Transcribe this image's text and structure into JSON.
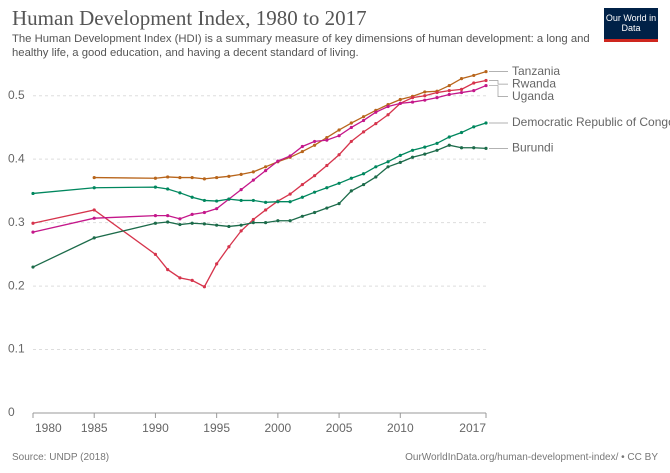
{
  "chart_data": {
    "type": "line",
    "title": "Human Development Index, 1980 to 2017",
    "subtitle": "The Human Development Index (HDI) is a summary measure of key dimensions of human development: a long and healthy life, a good education, and having a decent standard of living.",
    "logo": "Our World in Data",
    "source": "Source: UNDP (2018)",
    "footer_right": "OurWorldInData.org/human-development-index/ • CC BY",
    "x": [
      1980,
      1985,
      1990,
      1991,
      1992,
      1993,
      1994,
      1995,
      1996,
      1997,
      1998,
      1999,
      2000,
      2001,
      2002,
      2003,
      2004,
      2005,
      2006,
      2007,
      2008,
      2009,
      2010,
      2011,
      2012,
      2013,
      2014,
      2015,
      2016,
      2017
    ],
    "xlim": [
      1980,
      2017
    ],
    "xticks": [
      1980,
      1985,
      1990,
      1995,
      2000,
      2005,
      2010,
      2017
    ],
    "ylim": [
      0,
      0.55
    ],
    "yticks": [
      0,
      0.1,
      0.2,
      0.3,
      0.4,
      0.5
    ],
    "grid": true,
    "series": [
      {
        "name": "Tanzania",
        "color": "#b8651b",
        "values": [
          null,
          0.371,
          0.37,
          0.372,
          0.371,
          0.371,
          0.369,
          0.371,
          0.373,
          0.376,
          0.38,
          0.388,
          0.396,
          0.403,
          0.412,
          0.422,
          0.434,
          0.446,
          0.457,
          0.467,
          0.477,
          0.486,
          0.494,
          0.499,
          0.506,
          0.507,
          0.516,
          0.527,
          0.532,
          0.538
        ]
      },
      {
        "name": "Rwanda",
        "color": "#d6344c",
        "values": [
          0.299,
          0.32,
          0.25,
          0.226,
          0.213,
          0.209,
          0.199,
          0.235,
          0.262,
          0.287,
          0.305,
          0.32,
          0.334,
          0.345,
          0.36,
          0.374,
          0.39,
          0.407,
          0.428,
          0.443,
          0.456,
          0.47,
          0.488,
          0.497,
          0.5,
          0.505,
          0.508,
          0.51,
          0.52,
          0.524
        ]
      },
      {
        "name": "Uganda",
        "color": "#c4178a",
        "values": [
          0.285,
          0.307,
          0.311,
          0.311,
          0.306,
          0.313,
          0.316,
          0.322,
          0.337,
          0.352,
          0.367,
          0.382,
          0.397,
          0.405,
          0.42,
          0.428,
          0.43,
          0.437,
          0.45,
          0.461,
          0.474,
          0.483,
          0.488,
          0.49,
          0.493,
          0.497,
          0.502,
          0.505,
          0.508,
          0.516
        ]
      },
      {
        "name": "Democratic Republic of Congo",
        "color": "#00875e",
        "values": [
          0.346,
          0.355,
          0.356,
          0.353,
          0.347,
          0.34,
          0.335,
          0.334,
          0.337,
          0.335,
          0.335,
          0.332,
          0.333,
          0.333,
          0.34,
          0.348,
          0.355,
          0.362,
          0.37,
          0.377,
          0.388,
          0.396,
          0.406,
          0.414,
          0.419,
          0.425,
          0.435,
          0.442,
          0.451,
          0.457
        ]
      },
      {
        "name": "Burundi",
        "color": "#1c6b4a",
        "values": [
          0.23,
          0.276,
          0.299,
          0.301,
          0.297,
          0.299,
          0.298,
          0.296,
          0.294,
          0.296,
          0.3,
          0.3,
          0.303,
          0.303,
          0.31,
          0.316,
          0.323,
          0.33,
          0.35,
          0.36,
          0.372,
          0.388,
          0.395,
          0.403,
          0.408,
          0.414,
          0.422,
          0.418,
          0.418,
          0.417
        ]
      }
    ]
  }
}
